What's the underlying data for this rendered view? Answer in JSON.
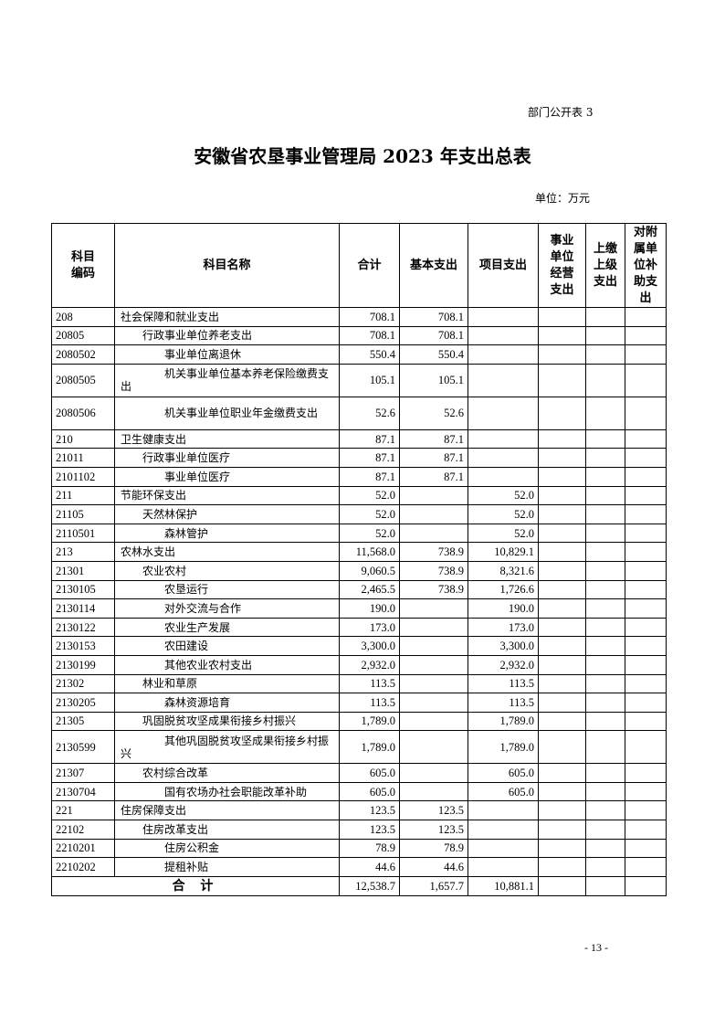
{
  "doc_tag": "部门公开表 3",
  "title": "安徽省农垦事业管理局 2023 年支出总表",
  "unit": "单位：万元",
  "headers": [
    "科目\n编码",
    "科目名称",
    "合计",
    "基本支出",
    "项目支出",
    "事业\n单位\n经营\n支出",
    "上缴\n上级\n支出",
    "对附\n属单\n位补\n助支\n出"
  ],
  "rows": [
    {
      "code": "208",
      "name": "社会保障和就业支出",
      "level": 0,
      "total": "708.1",
      "basic": "708.1",
      "project": ""
    },
    {
      "code": "20805",
      "name": "行政事业单位养老支出",
      "level": 1,
      "total": "708.1",
      "basic": "708.1",
      "project": ""
    },
    {
      "code": "2080502",
      "name": "事业单位离退休",
      "level": 2,
      "total": "550.4",
      "basic": "550.4",
      "project": ""
    },
    {
      "code": "2080505",
      "name": "机关事业单位基本养老保险缴费支出",
      "level": 2,
      "total": "105.1",
      "basic": "105.1",
      "project": ""
    },
    {
      "code": "2080506",
      "name": "机关事业单位职业年金缴费支出",
      "level": 2,
      "total": "52.6",
      "basic": "52.6",
      "project": ""
    },
    {
      "code": "210",
      "name": "卫生健康支出",
      "level": 0,
      "total": "87.1",
      "basic": "87.1",
      "project": ""
    },
    {
      "code": "21011",
      "name": "行政事业单位医疗",
      "level": 1,
      "total": "87.1",
      "basic": "87.1",
      "project": ""
    },
    {
      "code": "2101102",
      "name": "事业单位医疗",
      "level": 2,
      "total": "87.1",
      "basic": "87.1",
      "project": ""
    },
    {
      "code": "211",
      "name": "节能环保支出",
      "level": 0,
      "total": "52.0",
      "basic": "",
      "project": "52.0"
    },
    {
      "code": "21105",
      "name": "天然林保护",
      "level": 1,
      "total": "52.0",
      "basic": "",
      "project": "52.0"
    },
    {
      "code": "2110501",
      "name": "森林管护",
      "level": 2,
      "total": "52.0",
      "basic": "",
      "project": "52.0"
    },
    {
      "code": "213",
      "name": "农林水支出",
      "level": 0,
      "total": "11,568.0",
      "basic": "738.9",
      "project": "10,829.1"
    },
    {
      "code": "21301",
      "name": "农业农村",
      "level": 1,
      "total": "9,060.5",
      "basic": "738.9",
      "project": "8,321.6"
    },
    {
      "code": "2130105",
      "name": "农垦运行",
      "level": 2,
      "total": "2,465.5",
      "basic": "738.9",
      "project": "1,726.6"
    },
    {
      "code": "2130114",
      "name": "对外交流与合作",
      "level": 2,
      "total": "190.0",
      "basic": "",
      "project": "190.0"
    },
    {
      "code": "2130122",
      "name": "农业生产发展",
      "level": 2,
      "total": "173.0",
      "basic": "",
      "project": "173.0"
    },
    {
      "code": "2130153",
      "name": "农田建设",
      "level": 2,
      "total": "3,300.0",
      "basic": "",
      "project": "3,300.0"
    },
    {
      "code": "2130199",
      "name": "其他农业农村支出",
      "level": 2,
      "total": "2,932.0",
      "basic": "",
      "project": "2,932.0"
    },
    {
      "code": "21302",
      "name": "林业和草原",
      "level": 1,
      "total": "113.5",
      "basic": "",
      "project": "113.5"
    },
    {
      "code": "2130205",
      "name": "森林资源培育",
      "level": 2,
      "total": "113.5",
      "basic": "",
      "project": "113.5"
    },
    {
      "code": "21305",
      "name": "巩固脱贫攻坚成果衔接乡村振兴",
      "level": 1,
      "total": "1,789.0",
      "basic": "",
      "project": "1,789.0"
    },
    {
      "code": "2130599",
      "name": "其他巩固脱贫攻坚成果衔接乡村振兴",
      "level": 2,
      "total": "1,789.0",
      "basic": "",
      "project": "1,789.0"
    },
    {
      "code": "21307",
      "name": "农村综合改革",
      "level": 1,
      "total": "605.0",
      "basic": "",
      "project": "605.0"
    },
    {
      "code": "2130704",
      "name": "国有农场办社会职能改革补助",
      "level": 2,
      "total": "605.0",
      "basic": "",
      "project": "605.0"
    },
    {
      "code": "221",
      "name": "住房保障支出",
      "level": 0,
      "total": "123.5",
      "basic": "123.5",
      "project": ""
    },
    {
      "code": "22102",
      "name": "住房改革支出",
      "level": 1,
      "total": "123.5",
      "basic": "123.5",
      "project": ""
    },
    {
      "code": "2210201",
      "name": "住房公积金",
      "level": 2,
      "total": "78.9",
      "basic": "78.9",
      "project": ""
    },
    {
      "code": "2210202",
      "name": "提租补贴",
      "level": 2,
      "total": "44.6",
      "basic": "44.6",
      "project": ""
    }
  ],
  "summary": {
    "label": "合 计",
    "total": "12,538.7",
    "basic": "1,657.7",
    "project": "10,881.1"
  },
  "page_number": "- 13 -"
}
